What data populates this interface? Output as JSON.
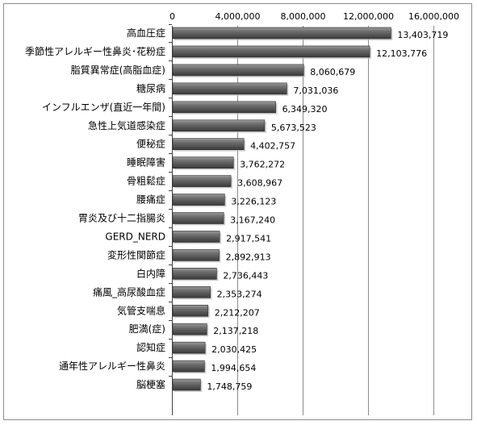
{
  "chart_data": {
    "type": "bar",
    "orientation": "horizontal",
    "categories": [
      "高血圧症",
      "季節性アレルギー性鼻炎･花粉症",
      "脂質異常症(高脂血症)",
      "糖尿病",
      "インフルエンザ(直近一年間)",
      "急性上気道感染症",
      "便秘症",
      "睡眠障害",
      "骨粗鬆症",
      "腰痛症",
      "胃炎及び十二指腸炎",
      "GERD_NERD",
      "変形性関節症",
      "白内障",
      "痛風_高尿酸血症",
      "気管支喘息",
      "肥満(症)",
      "認知症",
      "通年性アレルギー性鼻炎",
      "脳梗塞"
    ],
    "values": [
      13403719,
      12103776,
      8060679,
      7031036,
      6349320,
      5673523,
      4402757,
      3762272,
      3608967,
      3226123,
      3167240,
      2917541,
      2892913,
      2736443,
      2353274,
      2212207,
      2137218,
      2030425,
      1994654,
      1748759
    ],
    "value_labels": [
      "13,403,719",
      "12,103,776",
      "8,060,679",
      "7,031,036",
      "6,349,320",
      "5,673,523",
      "4,402,757",
      "3,762,272",
      "3,608,967",
      "3,226,123",
      "3,167,240",
      "2,917,541",
      "2,892,913",
      "2,736,443",
      "2,353,274",
      "2,212,207",
      "2,137,218",
      "2,030,425",
      "1,994,654",
      "1,748,759"
    ],
    "x_ticks": [
      0,
      4000000,
      8000000,
      12000000,
      16000000
    ],
    "x_tick_labels": [
      "0",
      "4,000,000",
      "8,000,000",
      "12,000,000",
      "16,000,000"
    ],
    "xlim": [
      0,
      16000000
    ],
    "x_axis_position": "top",
    "grid": "vertical",
    "title": "",
    "xlabel": "",
    "ylabel": "",
    "bar_color": "#595959"
  }
}
